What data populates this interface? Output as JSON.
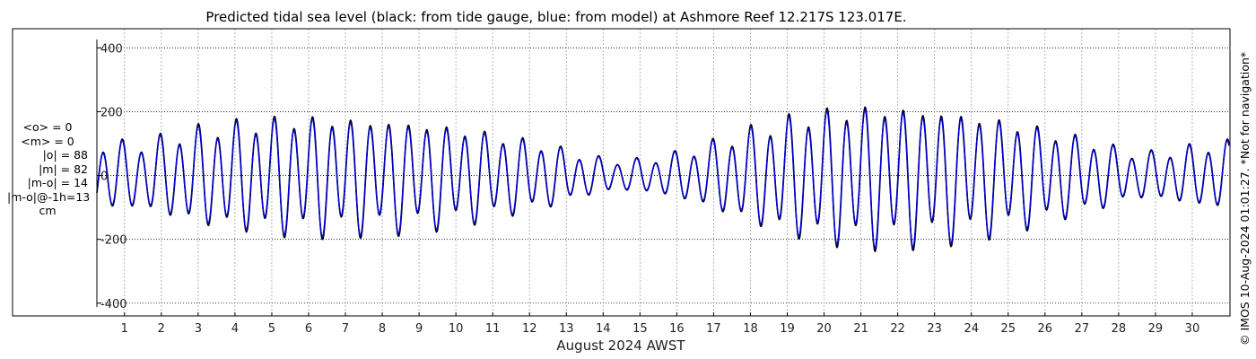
{
  "chart_data": {
    "type": "line",
    "title": "Predicted tidal sea level (black: from tide gauge, blue: from model) at Ashmore Reef 12.217S 123.017E.",
    "xlabel": "August 2024 AWST",
    "ylabel": "",
    "xlim": [
      0.25,
      31.0
    ],
    "ylim": [
      -440,
      460
    ],
    "y_ticks": [
      400,
      200,
      0,
      -200,
      -400
    ],
    "x_ticks": [
      "1",
      "2",
      "3",
      "4",
      "5",
      "6",
      "7",
      "8",
      "9",
      "10",
      "11",
      "12",
      "13",
      "14",
      "15",
      "16",
      "17",
      "18",
      "19",
      "20",
      "21",
      "22",
      "23",
      "24",
      "25",
      "26",
      "27",
      "28",
      "29",
      "30"
    ],
    "grid": true,
    "series": [
      {
        "name": "black: from tide gauge",
        "color": "#000000"
      },
      {
        "name": "blue: from model",
        "color": "#0000cc"
      }
    ],
    "tide_range_by_day": [
      {
        "x": 0.5,
        "range": 90
      },
      {
        "x": 1.5,
        "range": 90
      },
      {
        "x": 2.5,
        "range": 120
      },
      {
        "x": 3.5,
        "range": 140
      },
      {
        "x": 4.5,
        "range": 150
      },
      {
        "x": 5.5,
        "range": 160
      },
      {
        "x": 6.5,
        "range": 160
      },
      {
        "x": 7.5,
        "range": 155
      },
      {
        "x": 8.5,
        "range": 150
      },
      {
        "x": 9.5,
        "range": 140
      },
      {
        "x": 10.5,
        "range": 125
      },
      {
        "x": 11.5,
        "range": 105
      },
      {
        "x": 12.5,
        "range": 85
      },
      {
        "x": 13.5,
        "range": 55
      },
      {
        "x": 14.5,
        "range": 40
      },
      {
        "x": 15.5,
        "range": 50
      },
      {
        "x": 16.5,
        "range": 75
      },
      {
        "x": 17.5,
        "range": 110
      },
      {
        "x": 18.5,
        "range": 145
      },
      {
        "x": 19.5,
        "range": 170
      },
      {
        "x": 20.5,
        "range": 185
      },
      {
        "x": 21.5,
        "range": 190
      },
      {
        "x": 22.5,
        "range": 185
      },
      {
        "x": 23.5,
        "range": 175
      },
      {
        "x": 24.5,
        "range": 160
      },
      {
        "x": 25.5,
        "range": 140
      },
      {
        "x": 26.5,
        "range": 115
      },
      {
        "x": 27.5,
        "range": 90
      },
      {
        "x": 28.5,
        "range": 60
      },
      {
        "x": 29.5,
        "range": 70
      },
      {
        "x": 30.5,
        "range": 90
      }
    ]
  },
  "stats": {
    "mean_obs": "<o> = 0",
    "mean_model": "<m> = 0",
    "abs_obs": "|o| = 88",
    "abs_model": "|m| = 82",
    "abs_diff": "|m-o| = 14",
    "abs_diff_lag": "|m-o|@-1h=13",
    "unit": "cm"
  },
  "copyright": "© IMOS 10-Aug-2024 01:01:27. *Not for navigation*"
}
